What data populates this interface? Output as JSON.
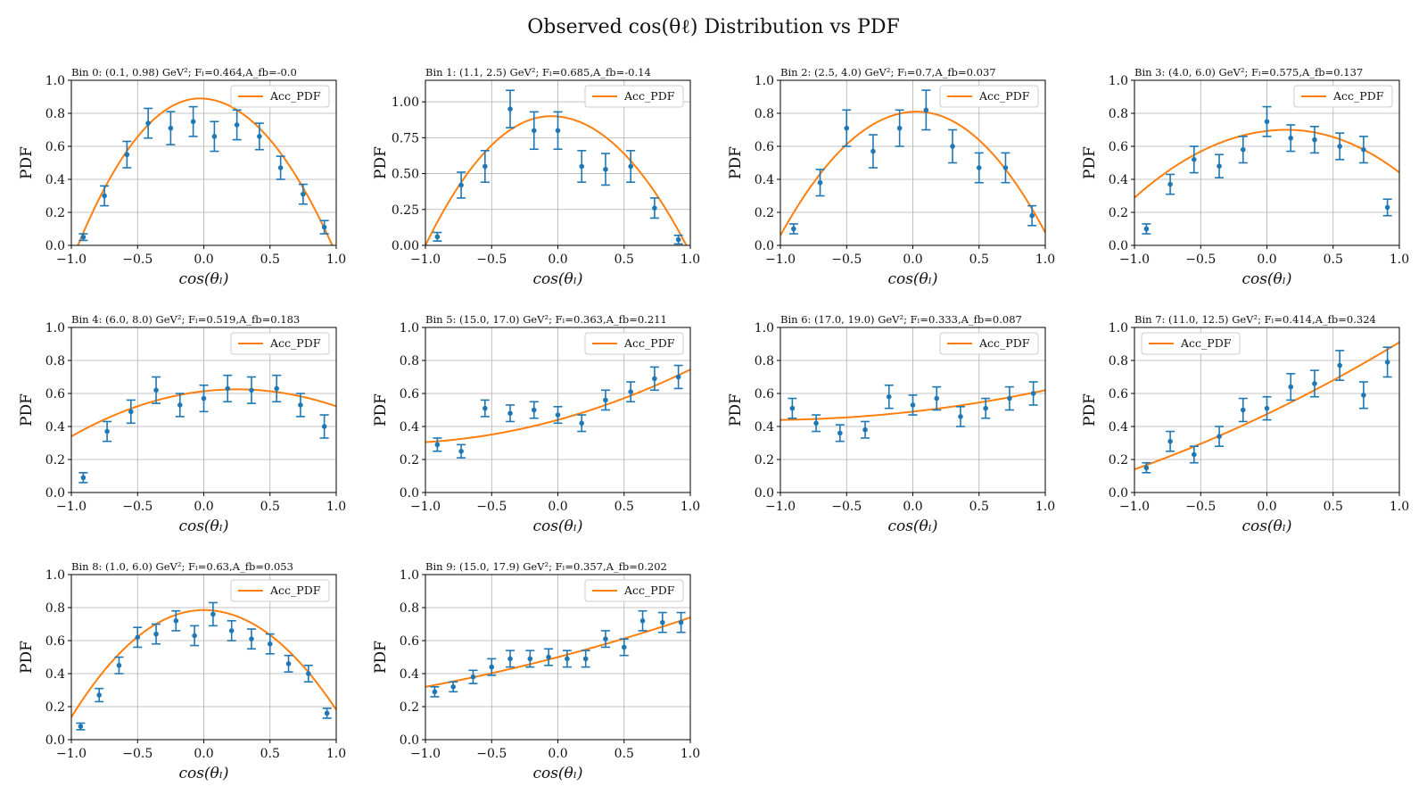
{
  "figure_title": "Observed cos(θℓ) Distribution vs PDF",
  "chart_data": [
    {
      "type": "scatter",
      "title": "Bin 0: (0.1, 0.98) GeV²; Fₗ=0.464,A_fb=-0.0",
      "xlabel": "cos(θₗ)",
      "ylabel": "PDF",
      "xlim": [
        -1,
        1
      ],
      "ylim": [
        0,
        1
      ],
      "grid": true,
      "legend": "top-right",
      "xticks": [
        "−1.0",
        "−0.5",
        "0.0",
        "0.5",
        "1.0"
      ],
      "yticks": [
        "0.0",
        "0.2",
        "0.4",
        "0.6",
        "0.8",
        "1.0"
      ],
      "series": [
        {
          "name": "Acc_PDF",
          "kind": "line",
          "fl": 0.464,
          "afb": -0.0,
          "peak": 0.89,
          "x0": -0.03,
          "lo": -0.95,
          "hi": 0.97
        },
        {
          "kind": "errorbar",
          "x": [
            -0.91,
            -0.75,
            -0.58,
            -0.42,
            -0.25,
            -0.08,
            0.08,
            0.25,
            0.42,
            0.58,
            0.75,
            0.91
          ],
          "y": [
            0.05,
            0.3,
            0.55,
            0.74,
            0.71,
            0.75,
            0.66,
            0.73,
            0.66,
            0.47,
            0.31,
            0.11
          ],
          "err": [
            0.02,
            0.06,
            0.08,
            0.09,
            0.1,
            0.09,
            0.09,
            0.09,
            0.08,
            0.07,
            0.06,
            0.04
          ]
        }
      ]
    },
    {
      "type": "scatter",
      "title": "Bin 1: (1.1, 2.5) GeV²; Fₗ=0.685,A_fb=-0.14",
      "xlabel": "cos(θₗ)",
      "ylabel": "PDF",
      "xlim": [
        -1,
        1
      ],
      "ylim": [
        0,
        1.15
      ],
      "grid": true,
      "legend": "top-right",
      "xticks": [
        "−1.0",
        "−0.5",
        "0.0",
        "0.5",
        "1.0"
      ],
      "yticks": [
        "0.00",
        "0.25",
        "0.50",
        "0.75",
        "1.00"
      ],
      "series": [
        {
          "name": "Acc_PDF",
          "kind": "line",
          "fl": 0.685,
          "afb": -0.14,
          "peak": 0.9,
          "x0": -0.05,
          "lo": -1.0,
          "hi": 0.97
        },
        {
          "kind": "errorbar",
          "x": [
            -0.91,
            -0.73,
            -0.55,
            -0.36,
            -0.18,
            0.0,
            0.18,
            0.36,
            0.55,
            0.73,
            0.91
          ],
          "y": [
            0.06,
            0.42,
            0.55,
            0.95,
            0.8,
            0.8,
            0.55,
            0.53,
            0.55,
            0.26,
            0.04
          ],
          "err": [
            0.03,
            0.09,
            0.11,
            0.13,
            0.13,
            0.13,
            0.11,
            0.11,
            0.11,
            0.07,
            0.03
          ]
        }
      ]
    },
    {
      "type": "scatter",
      "title": "Bin 2: (2.5, 4.0) GeV²; Fₗ=0.7,A_fb=0.037",
      "xlabel": "cos(θₗ)",
      "ylabel": "PDF",
      "xlim": [
        -1,
        1
      ],
      "ylim": [
        0,
        1
      ],
      "grid": true,
      "legend": "top-right",
      "xticks": [
        "−1.0",
        "−0.5",
        "0.0",
        "0.5",
        "1.0"
      ],
      "yticks": [
        "0.0",
        "0.2",
        "0.4",
        "0.6",
        "0.8",
        "1.0"
      ],
      "series": [
        {
          "name": "Acc_PDF",
          "kind": "line",
          "fl": 0.7,
          "afb": 0.037,
          "peak": 0.81,
          "x0": 0.03,
          "lo": -1.04,
          "hi": 1.05
        },
        {
          "kind": "errorbar",
          "x": [
            -0.9,
            -0.7,
            -0.5,
            -0.3,
            -0.1,
            0.1,
            0.3,
            0.5,
            0.7,
            0.9
          ],
          "y": [
            0.1,
            0.38,
            0.71,
            0.57,
            0.71,
            0.82,
            0.6,
            0.47,
            0.47,
            0.18
          ],
          "err": [
            0.03,
            0.08,
            0.11,
            0.1,
            0.11,
            0.12,
            0.1,
            0.09,
            0.09,
            0.06
          ]
        }
      ]
    },
    {
      "type": "scatter",
      "title": "Bin 3: (4.0, 6.0) GeV²; Fₗ=0.575,A_fb=0.137",
      "xlabel": "cos(θₗ)",
      "ylabel": "PDF",
      "xlim": [
        -1,
        1
      ],
      "ylim": [
        0,
        1
      ],
      "grid": true,
      "legend": "top-right",
      "xticks": [
        "−1.0",
        "−0.5",
        "0.0",
        "0.5",
        "1.0"
      ],
      "yticks": [
        "0.0",
        "0.2",
        "0.4",
        "0.6",
        "0.8",
        "1.0"
      ],
      "series": [
        {
          "name": "Acc_PDF",
          "kind": "line",
          "fl": 0.575,
          "afb": 0.137,
          "peak": 0.7,
          "x0": 0.15,
          "lo": -1.35,
          "hi": 1.55
        },
        {
          "kind": "errorbar",
          "x": [
            -0.91,
            -0.73,
            -0.55,
            -0.36,
            -0.18,
            0.0,
            0.18,
            0.36,
            0.55,
            0.73,
            0.91
          ],
          "y": [
            0.1,
            0.37,
            0.52,
            0.48,
            0.58,
            0.75,
            0.65,
            0.64,
            0.6,
            0.58,
            0.23
          ],
          "err": [
            0.03,
            0.06,
            0.08,
            0.07,
            0.08,
            0.09,
            0.08,
            0.08,
            0.08,
            0.08,
            0.05
          ]
        }
      ]
    },
    {
      "type": "scatter",
      "title": "Bin 4: (6.0, 8.0) GeV²; Fₗ=0.519,A_fb=0.183",
      "xlabel": "cos(θₗ)",
      "ylabel": "PDF",
      "xlim": [
        -1,
        1
      ],
      "ylim": [
        0,
        1
      ],
      "grid": true,
      "legend": "top-right",
      "xticks": [
        "−1.0",
        "−0.5",
        "0.0",
        "0.5",
        "1.0"
      ],
      "yticks": [
        "0.0",
        "0.2",
        "0.4",
        "0.6",
        "0.8",
        "1.0"
      ],
      "series": [
        {
          "name": "Acc_PDF",
          "kind": "line",
          "fl": 0.519,
          "afb": 0.183,
          "peak": 0.625,
          "x0": 0.25,
          "lo": -1.6,
          "hi": 2.1
        },
        {
          "kind": "errorbar",
          "x": [
            -0.91,
            -0.73,
            -0.55,
            -0.36,
            -0.18,
            0.0,
            0.18,
            0.36,
            0.55,
            0.73,
            0.91
          ],
          "y": [
            0.09,
            0.37,
            0.49,
            0.62,
            0.53,
            0.57,
            0.63,
            0.62,
            0.63,
            0.53,
            0.4
          ],
          "err": [
            0.03,
            0.06,
            0.07,
            0.08,
            0.07,
            0.08,
            0.08,
            0.08,
            0.08,
            0.07,
            0.07
          ]
        }
      ]
    },
    {
      "type": "scatter",
      "title": "Bin 5: (15.0, 17.0) GeV²; Fₗ=0.363,A_fb=0.211",
      "xlabel": "cos(θₗ)",
      "ylabel": "PDF",
      "xlim": [
        -1,
        1
      ],
      "ylim": [
        0,
        1
      ],
      "grid": true,
      "legend": "top-right",
      "xticks": [
        "−1.0",
        "−0.5",
        "0.0",
        "0.5",
        "1.0"
      ],
      "yticks": [
        "0.0",
        "0.2",
        "0.4",
        "0.6",
        "0.8",
        "1.0"
      ],
      "series": [
        {
          "name": "Acc_PDF",
          "kind": "poly",
          "c": [
            0.44,
            0.22,
            0.085
          ],
          "lo": -1.0,
          "hi": 1.0
        },
        {
          "kind": "errorbar",
          "x": [
            -0.91,
            -0.73,
            -0.55,
            -0.36,
            -0.18,
            0.0,
            0.18,
            0.36,
            0.55,
            0.73,
            0.91
          ],
          "y": [
            0.29,
            0.25,
            0.51,
            0.48,
            0.5,
            0.47,
            0.42,
            0.56,
            0.61,
            0.69,
            0.7
          ],
          "err": [
            0.04,
            0.04,
            0.05,
            0.05,
            0.05,
            0.05,
            0.05,
            0.06,
            0.06,
            0.07,
            0.07
          ]
        }
      ]
    },
    {
      "type": "scatter",
      "title": "Bin 6: (17.0, 19.0) GeV²; Fₗ=0.333,A_fb=0.087",
      "xlabel": "cos(θₗ)",
      "ylabel": "PDF",
      "xlim": [
        -1,
        1
      ],
      "ylim": [
        0,
        1
      ],
      "grid": true,
      "legend": "top-right",
      "xticks": [
        "−1.0",
        "−0.5",
        "0.0",
        "0.5",
        "1.0"
      ],
      "yticks": [
        "0.0",
        "0.2",
        "0.4",
        "0.6",
        "0.8",
        "1.0"
      ],
      "series": [
        {
          "name": "Acc_PDF",
          "kind": "poly",
          "c": [
            0.49,
            0.09,
            0.04
          ],
          "lo": -1.0,
          "hi": 1.0
        },
        {
          "kind": "errorbar",
          "x": [
            -0.91,
            -0.73,
            -0.55,
            -0.36,
            -0.18,
            0.0,
            0.18,
            0.36,
            0.55,
            0.73,
            0.91
          ],
          "y": [
            0.51,
            0.42,
            0.36,
            0.38,
            0.58,
            0.53,
            0.57,
            0.46,
            0.51,
            0.57,
            0.6
          ],
          "err": [
            0.06,
            0.05,
            0.05,
            0.05,
            0.07,
            0.06,
            0.07,
            0.06,
            0.06,
            0.07,
            0.07
          ]
        }
      ]
    },
    {
      "type": "scatter",
      "title": "Bin 7: (11.0, 12.5) GeV²; Fₗ=0.414,A_fb=0.324",
      "xlabel": "cos(θₗ)",
      "ylabel": "PDF",
      "xlim": [
        -1,
        1
      ],
      "ylim": [
        0,
        1
      ],
      "grid": true,
      "legend": "top-left",
      "xticks": [
        "−1.0",
        "−0.5",
        "0.0",
        "0.5",
        "1.0"
      ],
      "yticks": [
        "0.0",
        "0.2",
        "0.4",
        "0.6",
        "0.8",
        "1.0"
      ],
      "series": [
        {
          "name": "Acc_PDF",
          "kind": "poly",
          "c": [
            0.475,
            0.385,
            0.05
          ],
          "lo": -1.0,
          "hi": 1.0
        },
        {
          "kind": "errorbar",
          "x": [
            -0.91,
            -0.73,
            -0.55,
            -0.36,
            -0.18,
            0.0,
            0.18,
            0.36,
            0.55,
            0.73,
            0.91
          ],
          "y": [
            0.15,
            0.31,
            0.23,
            0.34,
            0.5,
            0.51,
            0.64,
            0.66,
            0.77,
            0.59,
            0.79
          ],
          "err": [
            0.03,
            0.06,
            0.05,
            0.06,
            0.07,
            0.07,
            0.08,
            0.08,
            0.09,
            0.08,
            0.09
          ]
        }
      ]
    },
    {
      "type": "scatter",
      "title": "Bin 8: (1.0, 6.0) GeV²; Fₗ=0.63,A_fb=0.053",
      "xlabel": "cos(θₗ)",
      "ylabel": "PDF",
      "xlim": [
        -1,
        1
      ],
      "ylim": [
        0,
        1
      ],
      "grid": true,
      "legend": "top-right",
      "xticks": [
        "−1.0",
        "−0.5",
        "0.0",
        "0.5",
        "1.0"
      ],
      "yticks": [
        "0.0",
        "0.2",
        "0.4",
        "0.6",
        "0.8",
        "1.0"
      ],
      "series": [
        {
          "name": "Acc_PDF",
          "kind": "line",
          "fl": 0.63,
          "afb": 0.053,
          "peak": 0.785,
          "x0": 0.0,
          "lo": -1.1,
          "hi": 1.14
        },
        {
          "kind": "errorbar",
          "x": [
            -0.93,
            -0.79,
            -0.64,
            -0.5,
            -0.36,
            -0.21,
            -0.07,
            0.07,
            0.21,
            0.36,
            0.5,
            0.64,
            0.79,
            0.93
          ],
          "y": [
            0.08,
            0.27,
            0.45,
            0.62,
            0.64,
            0.72,
            0.63,
            0.76,
            0.66,
            0.61,
            0.58,
            0.46,
            0.4,
            0.16
          ],
          "err": [
            0.02,
            0.04,
            0.05,
            0.06,
            0.06,
            0.06,
            0.06,
            0.07,
            0.06,
            0.06,
            0.06,
            0.05,
            0.05,
            0.03
          ]
        }
      ]
    },
    {
      "type": "scatter",
      "title": "Bin 9: (15.0, 17.9) GeV²; Fₗ=0.357,A_fb=0.202",
      "xlabel": "cos(θₗ)",
      "ylabel": "PDF",
      "xlim": [
        -1,
        1
      ],
      "ylim": [
        0,
        1
      ],
      "grid": true,
      "legend": "top-right",
      "xticks": [
        "−1.0",
        "−0.5",
        "0.0",
        "0.5",
        "1.0"
      ],
      "yticks": [
        "0.0",
        "0.2",
        "0.4",
        "0.6",
        "0.8",
        "1.0"
      ],
      "series": [
        {
          "name": "Acc_PDF",
          "kind": "poly",
          "c": [
            0.5,
            0.21,
            0.03
          ],
          "lo": -1.0,
          "hi": 1.0
        },
        {
          "kind": "errorbar",
          "x": [
            -0.93,
            -0.79,
            -0.64,
            -0.5,
            -0.36,
            -0.21,
            -0.07,
            0.07,
            0.21,
            0.36,
            0.5,
            0.64,
            0.79,
            0.93
          ],
          "y": [
            0.29,
            0.32,
            0.38,
            0.44,
            0.49,
            0.49,
            0.5,
            0.49,
            0.49,
            0.61,
            0.56,
            0.72,
            0.71,
            0.71
          ],
          "err": [
            0.03,
            0.03,
            0.04,
            0.05,
            0.05,
            0.05,
            0.05,
            0.05,
            0.05,
            0.05,
            0.05,
            0.06,
            0.06,
            0.06
          ]
        }
      ]
    }
  ],
  "colors": {
    "line": "#ff7f0e",
    "points": "#1f77b4"
  }
}
